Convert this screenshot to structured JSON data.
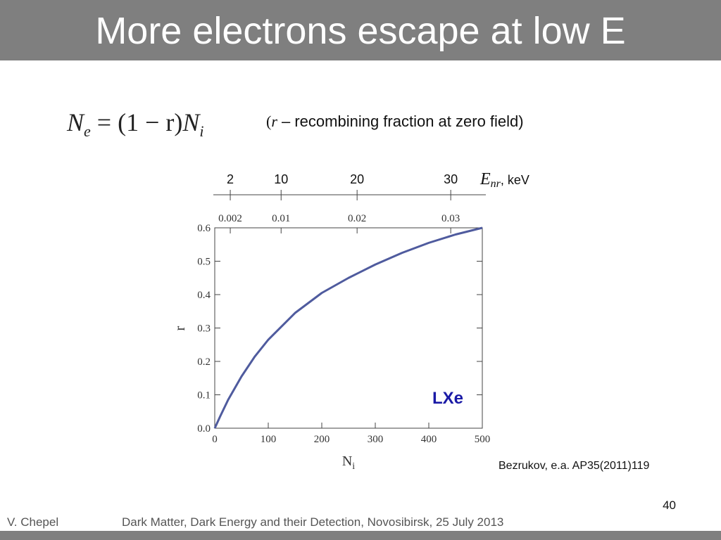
{
  "slide_title": "More electrons escape at low E",
  "formula": {
    "lhs": "N",
    "lhs_sub": "e",
    "mid": " = (1 − r)",
    "rhs": "N",
    "rhs_sub": "i"
  },
  "note": {
    "open": "(",
    "symbol": "r",
    "text": " – recombining fraction at zero field)"
  },
  "citation": "Bezrukov, e.a. AP35(2011)119",
  "footer": {
    "author": "V. Chepel",
    "event": "Dark Matter, Dark Energy and their Detection, Novosibirsk, 25 July 2013",
    "page": "40"
  },
  "chart_data": {
    "type": "line",
    "y_label": "r",
    "x_label": {
      "base": "N",
      "subscript": "i"
    },
    "annotation": "LXe",
    "x": [
      0,
      10,
      25,
      50,
      75,
      100,
      150,
      200,
      250,
      300,
      350,
      400,
      450,
      500
    ],
    "series": [
      {
        "name": "r",
        "color": "#4f5b9e",
        "values": [
          0,
          0.035,
          0.085,
          0.155,
          0.215,
          0.265,
          0.345,
          0.405,
          0.45,
          0.49,
          0.525,
          0.555,
          0.58,
          0.6
        ]
      }
    ],
    "xlim": [
      0,
      500
    ],
    "ylim": [
      0,
      0.6
    ],
    "xticks": [
      0,
      100,
      200,
      300,
      400,
      500
    ],
    "yticks": [
      {
        "value": 0,
        "label": "0.0"
      },
      0.1,
      0.2,
      0.3,
      0.4,
      0.5,
      0.6
    ],
    "top_ticks": [
      {
        "value": 29,
        "label": "0.002"
      },
      {
        "value": 124,
        "label": "0.01"
      },
      {
        "value": 266,
        "label": "0.02"
      },
      {
        "value": 441,
        "label": "0.03"
      }
    ],
    "energy_axis_label": {
      "symbol": "E",
      "subscript": "nr",
      "unit": ", keV"
    },
    "energy_ticks": [
      {
        "value": 29,
        "label": "2"
      },
      {
        "value": 124,
        "label": "10"
      },
      {
        "value": 266,
        "label": "20"
      },
      {
        "value": 441,
        "label": "30"
      }
    ]
  }
}
